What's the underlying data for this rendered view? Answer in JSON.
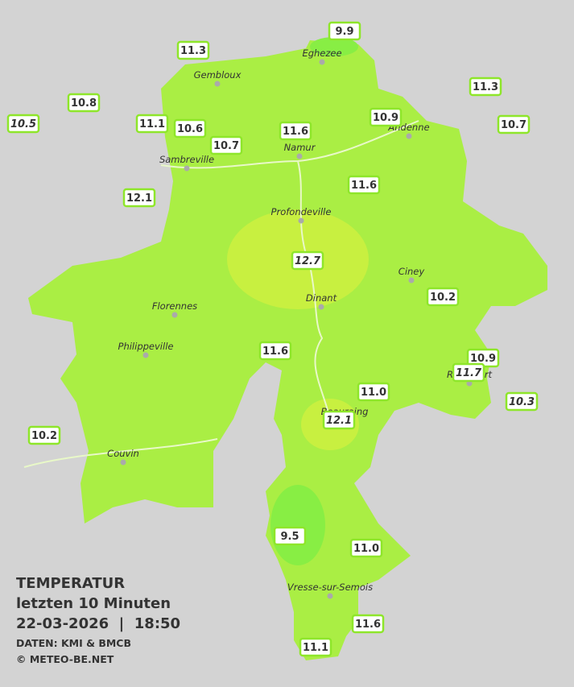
{
  "map": {
    "title": "TEMPERATUR",
    "subtitle": "letzten 10 Minuten",
    "timestamp": "22-03-2026  |  18:50",
    "source": "DATEN: KMI & BMCB",
    "copyright": "© METEO-BE.NET",
    "cities": [
      "Eghezee",
      "Gembloux",
      "Andenne",
      "Namur",
      "Sambreville",
      "Profondeville",
      "Ciney",
      "Florennes",
      "Dinant",
      "Philippeville",
      "Beauraing",
      "Rochefort",
      "Couvin",
      "Vresse-sur-Semois"
    ],
    "stations": [
      "9.9",
      "11.3",
      "10.8",
      "10.5",
      "11.1",
      "10.6",
      "10.7",
      "11.6",
      "10.9",
      "11.3",
      "10.7",
      "12.1",
      "11.6",
      "12.7",
      "10.2",
      "11.6",
      "10.9",
      "11.7",
      "11.0",
      "10.3",
      "12.1",
      "10.2",
      "9.5",
      "11.0",
      "11.6",
      "11.1"
    ]
  }
}
